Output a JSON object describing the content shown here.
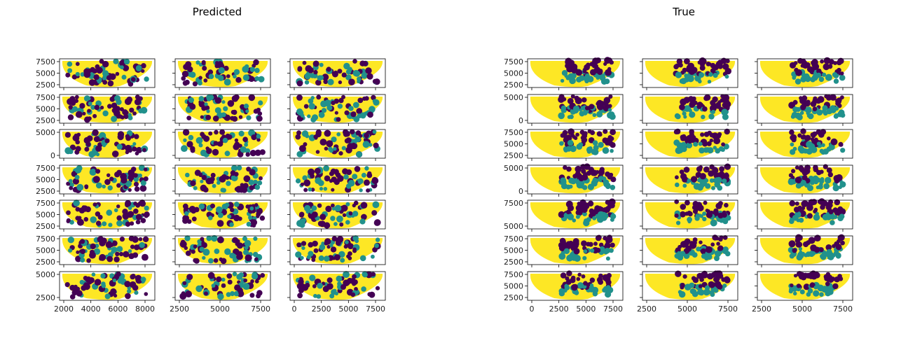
{
  "colors": {
    "class_0": "#440154",
    "class_1": "#21918c",
    "class_2": "#fde725",
    "axes": "#000000"
  },
  "chart_data": [
    {
      "type": "scatter",
      "title": "Predicted",
      "grid": false,
      "panels_rows": 7,
      "panels_cols": 3,
      "row_yticks": [
        [
          "2500",
          "5000",
          "7500"
        ],
        [
          "2500",
          "5000",
          "7500"
        ],
        [
          "0",
          "5000"
        ],
        [
          "2500",
          "5000",
          "7500"
        ],
        [
          "2500",
          "5000",
          "7500"
        ],
        [
          "2500",
          "5000",
          "7500"
        ],
        [
          "2500",
          "5000"
        ]
      ],
      "col_xticks": [
        [
          "2000",
          "4000",
          "6000",
          "8000"
        ],
        [
          "2500",
          "5000",
          "7500"
        ],
        [
          "0",
          "2500",
          "5000",
          "7500"
        ]
      ],
      "categories": [
        0,
        1,
        2
      ]
    },
    {
      "type": "scatter",
      "title": "True",
      "grid": false,
      "panels_rows": 7,
      "panels_cols": 3,
      "row_yticks": [
        [
          "2500",
          "5000",
          "7500"
        ],
        [
          "0",
          "5000"
        ],
        [
          "2500",
          "5000",
          "7500"
        ],
        [
          "0",
          "5000"
        ],
        [
          "5000",
          "7500"
        ],
        [
          "2500",
          "5000",
          "7500"
        ],
        [
          "2500",
          "5000",
          "7500"
        ]
      ],
      "col_xticks": [
        [
          "0",
          "2500",
          "5000",
          "7500"
        ],
        [
          "2500",
          "5000",
          "7500"
        ],
        [
          "2500",
          "5000",
          "7500"
        ]
      ],
      "categories": [
        0,
        1,
        2
      ]
    }
  ]
}
